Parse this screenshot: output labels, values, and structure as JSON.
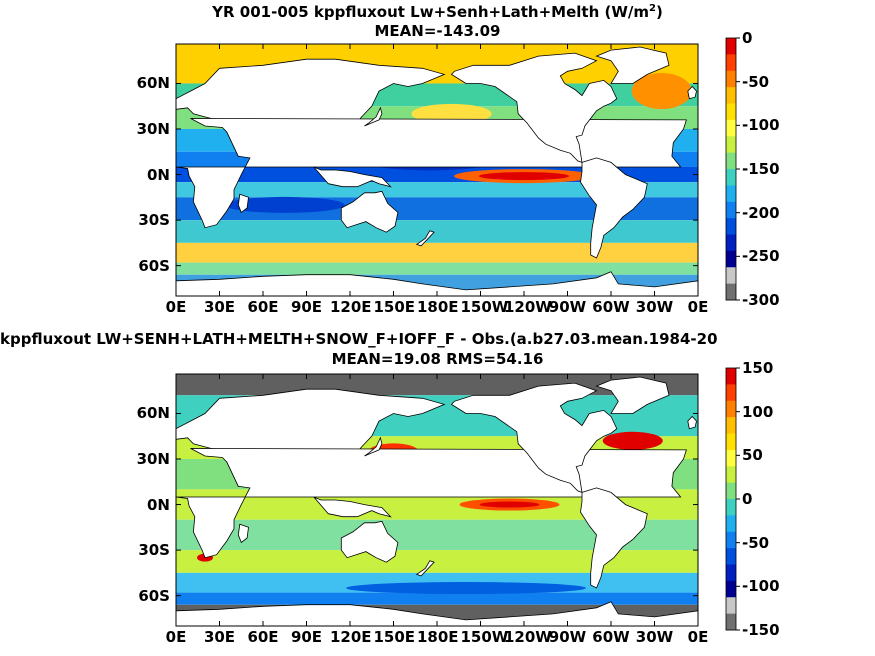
{
  "panels": [
    {
      "title_line1": "YR 001-005 kppfluxout Lw+Senh+Lath+Melth (W/m",
      "title_sup": "2",
      "title_close": ")",
      "title_line2": "MEAN=-143.09",
      "lat_labels": [
        "60N",
        "30N",
        "0N",
        "30S",
        "60S"
      ],
      "lon_labels": [
        "0E",
        "30E",
        "60E",
        "90E",
        "120E",
        "150E",
        "180E",
        "150W",
        "120W",
        "90W",
        "60W",
        "30W",
        "0E"
      ],
      "colorbar": {
        "ticks": [
          "0",
          "-50",
          "-100",
          "-150",
          "-200",
          "-250",
          "-300"
        ],
        "colors": [
          "#e00000",
          "#ff4000",
          "#ff8000",
          "#ffbf00",
          "#ffe000",
          "#ffff40",
          "#c8f040",
          "#80e080",
          "#40d0c0",
          "#20b0f0",
          "#1080f0",
          "#0050e0",
          "#0020c0",
          "#000090",
          "#c8c8c8",
          "#707070"
        ]
      }
    },
    {
      "title_line1": "kppfluxout LW+SENH+LATH+MELTH+SNOW_F+IOFF_F - Obs.(a.b27.03.mean.1984-20",
      "title_line2": "MEAN=19.08 RMS=54.16",
      "lat_labels": [
        "60N",
        "30N",
        "0N",
        "30S",
        "60S"
      ],
      "lon_labels": [
        "0E",
        "30E",
        "60E",
        "90E",
        "120E",
        "150E",
        "180E",
        "150W",
        "120W",
        "90W",
        "60W",
        "30W",
        "0E"
      ],
      "colorbar": {
        "ticks": [
          "150",
          "100",
          "50",
          "0",
          "-50",
          "-100",
          "-150"
        ],
        "colors": [
          "#e00000",
          "#ff4000",
          "#ff8000",
          "#ffbf00",
          "#ffe000",
          "#ffff40",
          "#c8f040",
          "#80e080",
          "#40d0c0",
          "#20b0f0",
          "#1080f0",
          "#0050e0",
          "#0020c0",
          "#000090",
          "#c8c8c8",
          "#707070"
        ]
      }
    }
  ],
  "chart_data": [
    {
      "type": "heatmap",
      "title": "YR 001-005 kppfluxout Lw+Senh+Lath+Melth (W/m2)",
      "subtitle": "MEAN=-143.09",
      "x_ticks": [
        "0E",
        "30E",
        "60E",
        "90E",
        "120E",
        "150E",
        "180E",
        "150W",
        "120W",
        "90W",
        "60W",
        "30W",
        "0E"
      ],
      "y_ticks": [
        "60N",
        "30N",
        "0N",
        "30S",
        "60S"
      ],
      "colorbar_range": [
        -300,
        0
      ],
      "colorbar_ticks": [
        0,
        -50,
        -100,
        -150,
        -200,
        -250,
        -300
      ],
      "mean": -143.09
    },
    {
      "type": "heatmap",
      "title": "kppfluxout LW+SENH+LATH+MELTH+SNOW_F+IOFF_F - Obs.(a.b27.03.mean.1984-20",
      "subtitle": "MEAN=19.08 RMS=54.16",
      "x_ticks": [
        "0E",
        "30E",
        "60E",
        "90E",
        "120E",
        "150E",
        "180E",
        "150W",
        "120W",
        "90W",
        "60W",
        "30W",
        "0E"
      ],
      "y_ticks": [
        "60N",
        "30N",
        "0N",
        "30S",
        "60S"
      ],
      "colorbar_range": [
        -150,
        150
      ],
      "colorbar_ticks": [
        150,
        100,
        50,
        0,
        -50,
        -100,
        -150
      ],
      "mean": 19.08,
      "rms": 54.16
    }
  ]
}
